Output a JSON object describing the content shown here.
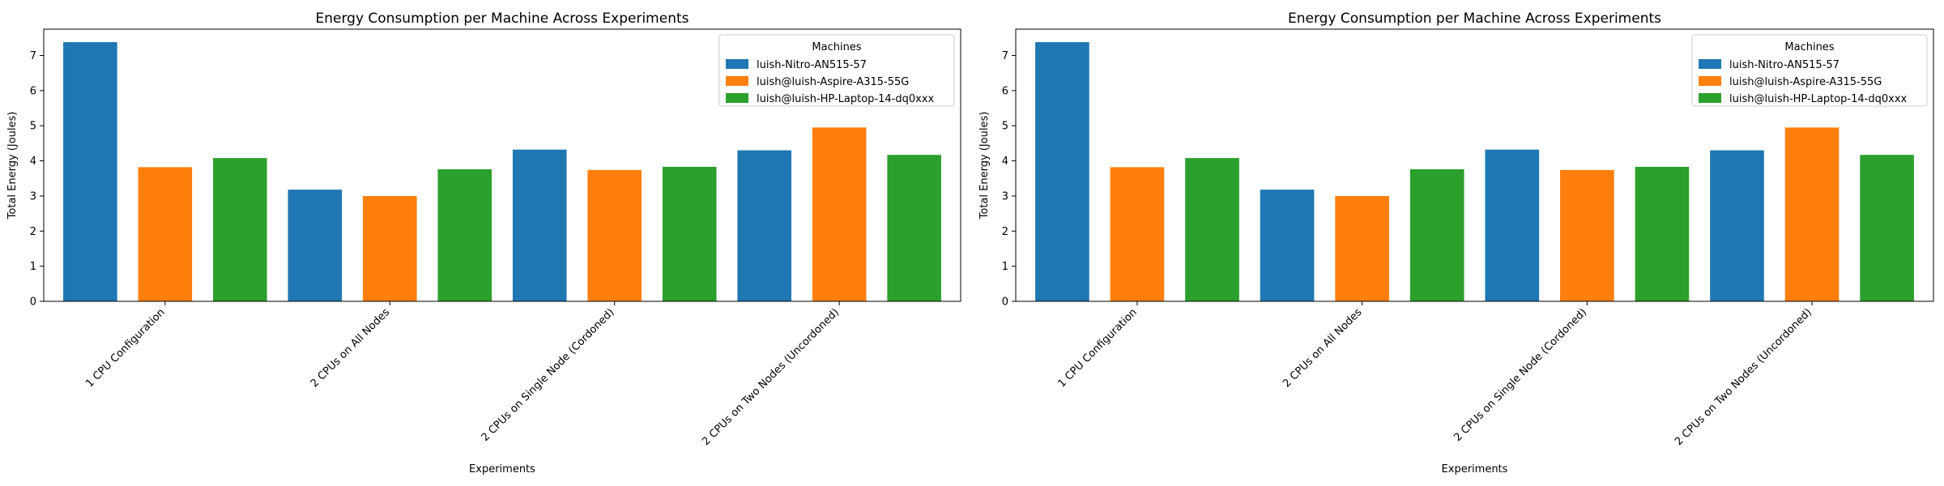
{
  "chart_data": [
    {
      "type": "bar",
      "title": "Energy Consumption per Machine Across Experiments",
      "xlabel": "Experiments",
      "ylabel": "Total Energy (Joules)",
      "ylim": [
        0,
        7.75
      ],
      "yticks": [
        0,
        1,
        2,
        3,
        4,
        5,
        6,
        7
      ],
      "categories": [
        "1 CPU Configuration",
        "2 CPUs on All Nodes",
        "2 CPUs on Single Node (Cordoned)",
        "2 CPUs on Two Nodes (Uncordoned)"
      ],
      "legend": {
        "title": "Machines",
        "placement": "top-right"
      },
      "series": [
        {
          "name": "luish-Nitro-AN515-57",
          "color": "#1f77b4",
          "values": [
            7.38,
            3.18,
            4.32,
            4.3
          ]
        },
        {
          "name": "luish@luish-Aspire-A315-55G",
          "color": "#ff7f0e",
          "values": [
            3.82,
            3.0,
            3.74,
            4.95
          ]
        },
        {
          "name": "luish@luish-HP-Laptop-14-dq0xxx",
          "color": "#2ca02c",
          "values": [
            4.08,
            3.76,
            3.83,
            4.17
          ]
        }
      ],
      "grid": false
    },
    {
      "type": "bar",
      "title": "Energy Consumption per Machine Across Experiments",
      "xlabel": "Experiments",
      "ylabel": "Total Energy (Joules)",
      "ylim": [
        0,
        7.75
      ],
      "yticks": [
        0,
        1,
        2,
        3,
        4,
        5,
        6,
        7
      ],
      "categories": [
        "1 CPU Configuration",
        "2 CPUs on All Nodes",
        "2 CPUs on Single Node (Cordoned)",
        "2 CPUs on Two Nodes (Uncordoned)"
      ],
      "legend": {
        "title": "Machines",
        "placement": "top-right"
      },
      "series": [
        {
          "name": "luish-Nitro-AN515-57",
          "color": "#1f77b4",
          "values": [
            7.38,
            3.18,
            4.32,
            4.3
          ]
        },
        {
          "name": "luish@luish-Aspire-A315-55G",
          "color": "#ff7f0e",
          "values": [
            3.82,
            3.0,
            3.74,
            4.95
          ]
        },
        {
          "name": "luish@luish-HP-Laptop-14-dq0xxx",
          "color": "#2ca02c",
          "values": [
            4.08,
            3.76,
            3.83,
            4.17
          ]
        }
      ],
      "grid": false
    }
  ]
}
